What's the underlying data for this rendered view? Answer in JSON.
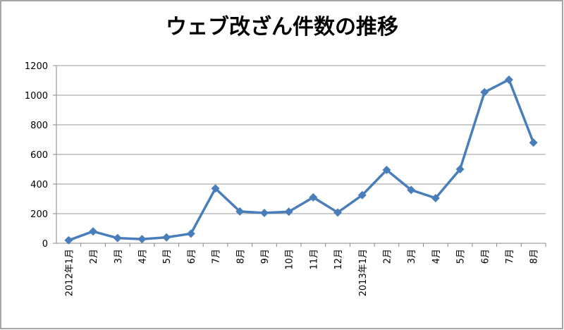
{
  "chart_data": {
    "type": "line",
    "title": "ウェブ改ざん件数の推移",
    "categories": [
      "2012年1月",
      "2月",
      "3月",
      "4月",
      "5月",
      "6月",
      "7月",
      "8月",
      "9月",
      "10月",
      "11月",
      "12月",
      "2013年1月",
      "2月",
      "3月",
      "4月",
      "5月",
      "6月",
      "7月",
      "8月"
    ],
    "values": [
      20,
      80,
      35,
      28,
      40,
      65,
      370,
      215,
      205,
      213,
      310,
      208,
      325,
      495,
      360,
      305,
      500,
      1020,
      1105,
      680
    ],
    "color": "#4a7ebb",
    "ylim": [
      0,
      1200
    ],
    "yticks": [
      0,
      200,
      400,
      600,
      800,
      1000,
      1200
    ],
    "grid": true
  }
}
